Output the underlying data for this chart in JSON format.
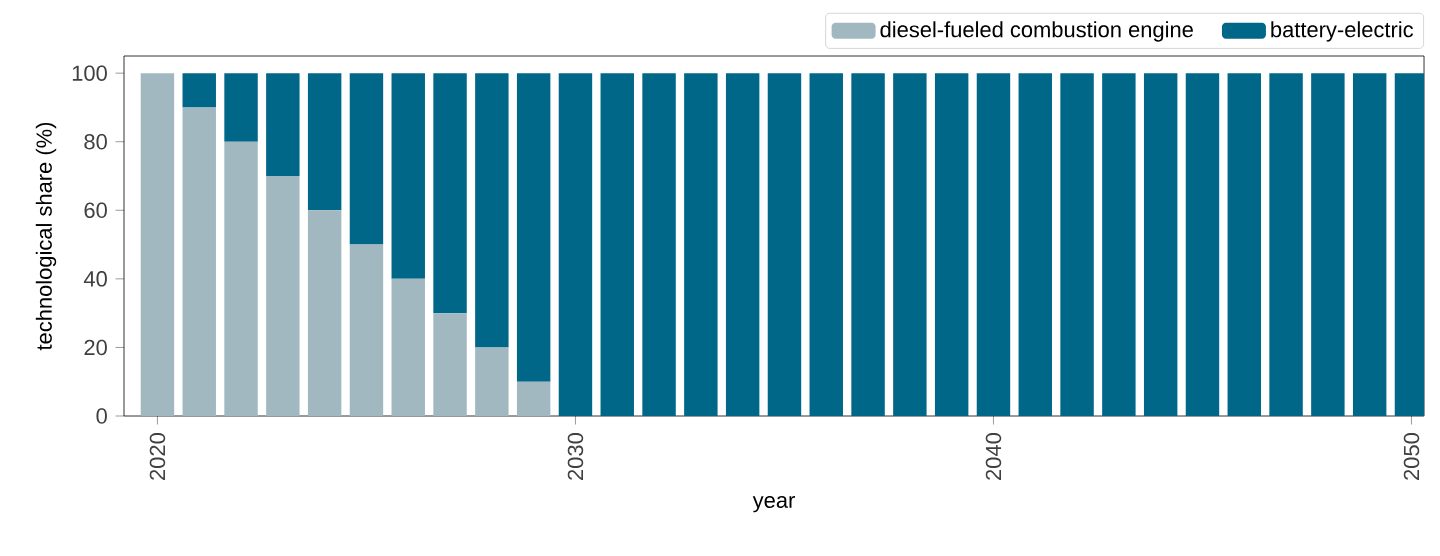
{
  "chart_data": {
    "type": "bar",
    "stacked": true,
    "xlabel": "year",
    "ylabel": "technological share (%)",
    "x": [
      2020,
      2021,
      2022,
      2023,
      2024,
      2025,
      2026,
      2027,
      2028,
      2029,
      2030,
      2031,
      2032,
      2033,
      2034,
      2035,
      2036,
      2037,
      2038,
      2039,
      2040,
      2041,
      2042,
      2043,
      2044,
      2045,
      2046,
      2047,
      2048,
      2049,
      2050
    ],
    "series": [
      {
        "name": "diesel-fueled combustion engine",
        "color": "#a2b8c1",
        "values": [
          100,
          90,
          80,
          70,
          60,
          50,
          40,
          30,
          20,
          10,
          0,
          0,
          0,
          0,
          0,
          0,
          0,
          0,
          0,
          0,
          0,
          0,
          0,
          0,
          0,
          0,
          0,
          0,
          0,
          0,
          0
        ]
      },
      {
        "name": "battery-electric",
        "color": "#006788",
        "values": [
          0,
          10,
          20,
          30,
          40,
          50,
          60,
          70,
          80,
          90,
          100,
          100,
          100,
          100,
          100,
          100,
          100,
          100,
          100,
          100,
          100,
          100,
          100,
          100,
          100,
          100,
          100,
          100,
          100,
          100,
          100
        ]
      }
    ],
    "xlim": [
      2019.2,
      2050.3
    ],
    "ylim": [
      0,
      105
    ],
    "xticks": [
      2020,
      2030,
      2040,
      2050
    ],
    "yticks": [
      0,
      20,
      40,
      60,
      80,
      100
    ],
    "grid": false,
    "legend": "top right"
  }
}
